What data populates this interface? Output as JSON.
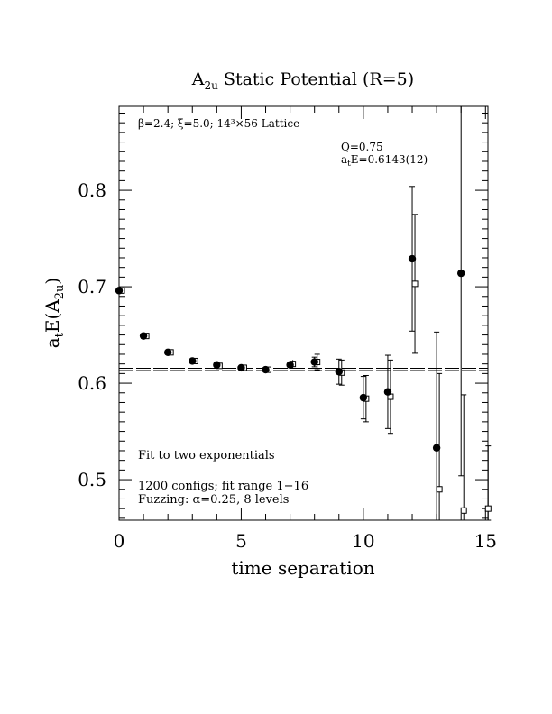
{
  "chart_data": {
    "type": "scatter",
    "title_main": "A",
    "title_sub": "2u",
    "title_rest": " Static Potential (R=5)",
    "xlabel": "time separation",
    "ylabel_a": "a",
    "ylabel_t": "t",
    "ylabel_e": "E(A",
    "ylabel_sub": "2u",
    "ylabel_close": ")",
    "xlim": [
      0,
      15.1
    ],
    "ylim": [
      0.458,
      0.887
    ],
    "x_ticks": [
      0,
      5,
      10,
      15
    ],
    "y_ticks": [
      0.5,
      0.6,
      0.7,
      0.8
    ],
    "x_tick_labels": [
      "0",
      "5",
      "10",
      "15"
    ],
    "y_tick_labels": [
      "0.5",
      "0.6",
      "0.7",
      "0.8"
    ],
    "lattice_text": "β=2.4; ξ=5.0; 14³×56 Lattice",
    "q_text": "Q=0.75",
    "fit_e_a": "a",
    "fit_e_t": "t",
    "fit_e_rest": "E=0.6143(12)",
    "note1": "Fit to two exponentials",
    "note2": "1200 configs; fit range 1−16",
    "note3": "Fuzzing: α=0.25, 8 levels",
    "fit_value": 0.6143,
    "fit_error": 0.0012,
    "series": [
      {
        "marker": "filled-circle",
        "points": [
          {
            "x": 0,
            "y": 0.696,
            "err": 0.002
          },
          {
            "x": 1,
            "y": 0.649,
            "err": 0.002
          },
          {
            "x": 2,
            "y": 0.632,
            "err": 0.002
          },
          {
            "x": 3,
            "y": 0.623,
            "err": 0.002
          },
          {
            "x": 4,
            "y": 0.619,
            "err": 0.002
          },
          {
            "x": 5,
            "y": 0.616,
            "err": 0.002
          },
          {
            "x": 6,
            "y": 0.614,
            "err": 0.002
          },
          {
            "x": 7,
            "y": 0.619,
            "err": 0.003
          },
          {
            "x": 8,
            "y": 0.622,
            "err": 0.005
          },
          {
            "x": 9,
            "y": 0.612,
            "err": 0.013
          },
          {
            "x": 10,
            "y": 0.585,
            "err": 0.022
          },
          {
            "x": 11,
            "y": 0.591,
            "err": 0.038
          },
          {
            "x": 12,
            "y": 0.729,
            "err": 0.075
          },
          {
            "x": 13,
            "y": 0.533,
            "err": 0.12
          },
          {
            "x": 14,
            "y": 0.714,
            "err": 0.21
          }
        ]
      },
      {
        "marker": "open-square",
        "points": [
          {
            "x": 0,
            "y": 0.696,
            "err": 0.002
          },
          {
            "x": 1,
            "y": 0.649,
            "err": 0.002
          },
          {
            "x": 2,
            "y": 0.632,
            "err": 0.002
          },
          {
            "x": 3,
            "y": 0.623,
            "err": 0.002
          },
          {
            "x": 4,
            "y": 0.618,
            "err": 0.002
          },
          {
            "x": 5,
            "y": 0.616,
            "err": 0.002
          },
          {
            "x": 6,
            "y": 0.614,
            "err": 0.002
          },
          {
            "x": 7,
            "y": 0.62,
            "err": 0.004
          },
          {
            "x": 8,
            "y": 0.622,
            "err": 0.008
          },
          {
            "x": 9,
            "y": 0.611,
            "err": 0.013
          },
          {
            "x": 10,
            "y": 0.584,
            "err": 0.024
          },
          {
            "x": 11,
            "y": 0.586,
            "err": 0.038
          },
          {
            "x": 12,
            "y": 0.703,
            "err": 0.072
          },
          {
            "x": 13,
            "y": 0.49,
            "err": 0.12
          },
          {
            "x": 14,
            "y": 0.468,
            "err": 0.12
          },
          {
            "x": 15,
            "y": 0.47,
            "err": 0.065
          }
        ]
      }
    ],
    "colors": {
      "ink": "#000000",
      "background": "#ffffff"
    }
  }
}
